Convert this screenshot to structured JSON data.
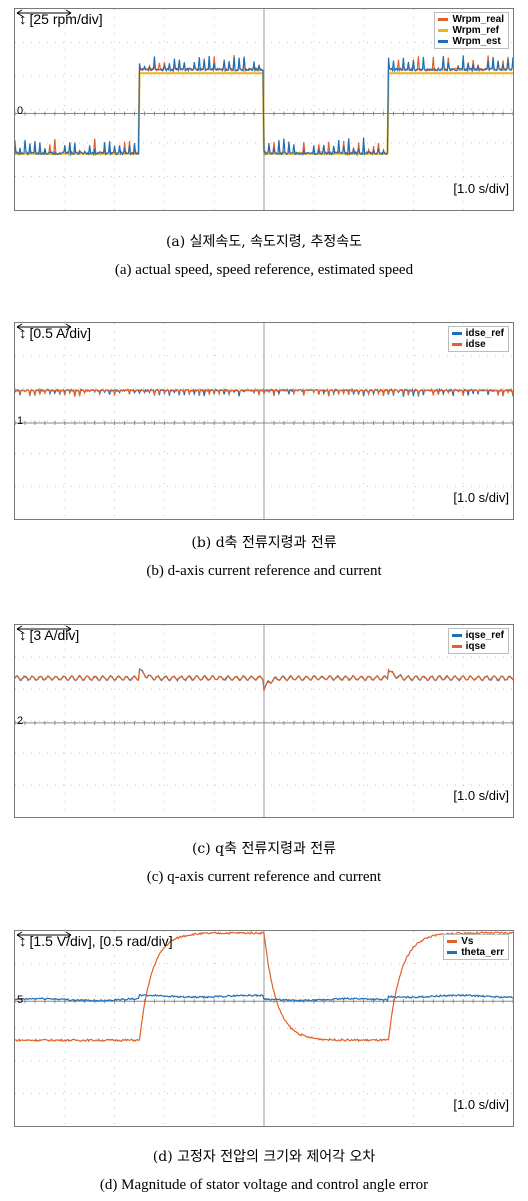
{
  "chart_data": [
    {
      "type": "line",
      "scale_label": "[25 rpm/div]",
      "time_label": "[1.0 s/div]",
      "zero_marker": "0",
      "divisions": {
        "x": 10,
        "y": 6
      },
      "ylim_div": [
        -2.5,
        2.5
      ],
      "x_range_s": [
        0,
        10
      ],
      "grid": true,
      "legend_position": "top-right",
      "series": [
        {
          "name": "Wrpm_real",
          "color": "#e0622a",
          "square_high_div": 1.35,
          "square_low_div": -1.15,
          "transition_s": [
            2.5,
            5.0,
            7.5
          ],
          "ripple_div": 0.25
        },
        {
          "name": "Wrpm_ref",
          "color": "#f2b21b",
          "square_high_div": 1.2,
          "square_low_div": -1.2,
          "transition_s": [
            2.5,
            5.0,
            7.5
          ]
        },
        {
          "name": "Wrpm_est",
          "color": "#1f6fb5",
          "square_high_div": 1.35,
          "square_low_div": -1.15,
          "transition_s": [
            2.5,
            5.0,
            7.5
          ],
          "ripple_div": 0.25
        }
      ],
      "caption_ko": "(a)  실제속도, 속도지령, 추정속도",
      "caption_en": "(a)  actual  speed,  speed  reference,  estimated  speed"
    },
    {
      "type": "line",
      "scale_label": "[0.5 A/div]",
      "time_label": "[1.0 s/div]",
      "zero_marker": "1",
      "divisions": {
        "x": 10,
        "y": 6
      },
      "grid": true,
      "legend_position": "top-right",
      "series": [
        {
          "name": "idse_ref",
          "color": "#1f6fb5",
          "level_div": 1.0
        },
        {
          "name": "idse",
          "color": "#e0622a",
          "level_div": 1.0,
          "ripple_div": 0.1
        }
      ],
      "caption_ko": "(b)  d축  전류지령과  전류",
      "caption_en": "(b)  d-axis  current  reference  and  current"
    },
    {
      "type": "line",
      "scale_label": "[3 A/div]",
      "time_label": "[1.0 s/div]",
      "zero_marker": "2",
      "divisions": {
        "x": 10,
        "y": 6
      },
      "grid": true,
      "legend_position": "top-right",
      "series": [
        {
          "name": "iqse_ref",
          "color": "#1f6fb5",
          "level_div": 1.4,
          "ripple_div": 0.1
        },
        {
          "name": "iqse",
          "color": "#e0622a",
          "level_div": 1.4,
          "ripple_div": 0.1
        }
      ],
      "caption_ko": "(c)  q축  전류지령과  전류",
      "caption_en": "(c)  q-axis  current  reference  and  current"
    },
    {
      "type": "line",
      "scale_label": "[1.5 V/div], [0.5 rad/div]",
      "time_label": "[1.0 s/div]",
      "zero_marker": "5",
      "divisions": {
        "x": 10,
        "y": 6
      },
      "grid": true,
      "legend_position": "top-right",
      "series": [
        {
          "name": "Vs",
          "color": "#e0622a",
          "square_high_div": 2.1,
          "square_low_div": -1.2,
          "transition_s": [
            2.5,
            5.0,
            7.5
          ]
        },
        {
          "name": "theta_err",
          "color": "#1f6fb5",
          "level_div": 0.1,
          "ripple_div": 0.05
        }
      ],
      "caption_ko": "(d)  고정자  전압의  크기와  제어각  오차",
      "caption_en": "(d)  Magnitude  of  stator  voltage  and  control  angle  error"
    }
  ]
}
